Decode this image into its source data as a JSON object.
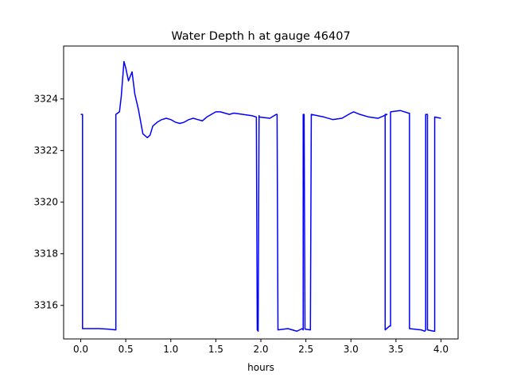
{
  "chart_data": {
    "type": "line",
    "title": "Water Depth h at gauge 46407",
    "xlabel": "hours",
    "ylabel": "",
    "xlim": [
      -0.19,
      4.19
    ],
    "ylim": [
      3314.7,
      3326.05
    ],
    "xticks": [
      0.0,
      0.5,
      1.0,
      1.5,
      2.0,
      2.5,
      3.0,
      3.5,
      4.0
    ],
    "xtick_labels": [
      "0.0",
      "0.5",
      "1.0",
      "1.5",
      "2.0",
      "2.5",
      "3.0",
      "3.5",
      "4.0"
    ],
    "yticks": [
      3316,
      3318,
      3320,
      3322,
      3324
    ],
    "ytick_labels": [
      "3316",
      "3318",
      "3320",
      "3322",
      "3324"
    ],
    "grid": false,
    "line_color": "#0000ff",
    "series": [
      {
        "name": "",
        "x": [
          0.0,
          0.02,
          0.02,
          0.2,
          0.3,
          0.39,
          0.39,
          0.43,
          0.45,
          0.48,
          0.5,
          0.53,
          0.57,
          0.6,
          0.64,
          0.69,
          0.74,
          0.77,
          0.8,
          0.85,
          0.9,
          0.95,
          1.0,
          1.05,
          1.1,
          1.15,
          1.2,
          1.25,
          1.3,
          1.35,
          1.4,
          1.45,
          1.5,
          1.55,
          1.6,
          1.65,
          1.7,
          1.8,
          1.9,
          1.95,
          1.96,
          1.97,
          1.98,
          1.98,
          2.1,
          2.17,
          2.18,
          2.19,
          2.3,
          2.4,
          2.46,
          2.47,
          2.47,
          2.48,
          2.49,
          2.49,
          2.55,
          2.56,
          2.56,
          2.7,
          2.8,
          2.9,
          3.0,
          3.03,
          3.1,
          3.2,
          3.3,
          3.4,
          3.38,
          3.38,
          3.43,
          3.44,
          3.44,
          3.55,
          3.64,
          3.65,
          3.65,
          3.78,
          3.82,
          3.83,
          3.83,
          3.85,
          3.85,
          3.92,
          3.93,
          3.93,
          4.0
        ],
        "y": [
          3323.4,
          3323.4,
          3315.1,
          3315.1,
          3315.08,
          3315.05,
          3323.4,
          3323.5,
          3324.1,
          3325.45,
          3325.2,
          3324.7,
          3325.05,
          3324.2,
          3323.6,
          3322.65,
          3322.5,
          3322.6,
          3322.95,
          3323.1,
          3323.2,
          3323.25,
          3323.2,
          3323.1,
          3323.05,
          3323.1,
          3323.2,
          3323.25,
          3323.2,
          3323.15,
          3323.3,
          3323.4,
          3323.5,
          3323.5,
          3323.45,
          3323.4,
          3323.45,
          3323.4,
          3323.35,
          3323.3,
          3315.05,
          3315.0,
          3323.35,
          3323.3,
          3323.25,
          3323.4,
          3323.4,
          3315.05,
          3315.1,
          3315.0,
          3315.1,
          3315.05,
          3323.4,
          3323.4,
          3315.1,
          3315.08,
          3315.05,
          3323.4,
          3323.4,
          3323.3,
          3323.2,
          3323.25,
          3323.45,
          3323.5,
          3323.4,
          3323.3,
          3323.25,
          3323.4,
          3323.4,
          3315.05,
          3315.2,
          3315.2,
          3323.5,
          3323.55,
          3323.45,
          3323.45,
          3315.1,
          3315.05,
          3315.0,
          3315.05,
          3323.4,
          3323.4,
          3315.05,
          3315.0,
          3315.0,
          3323.3,
          3323.25
        ]
      }
    ]
  }
}
